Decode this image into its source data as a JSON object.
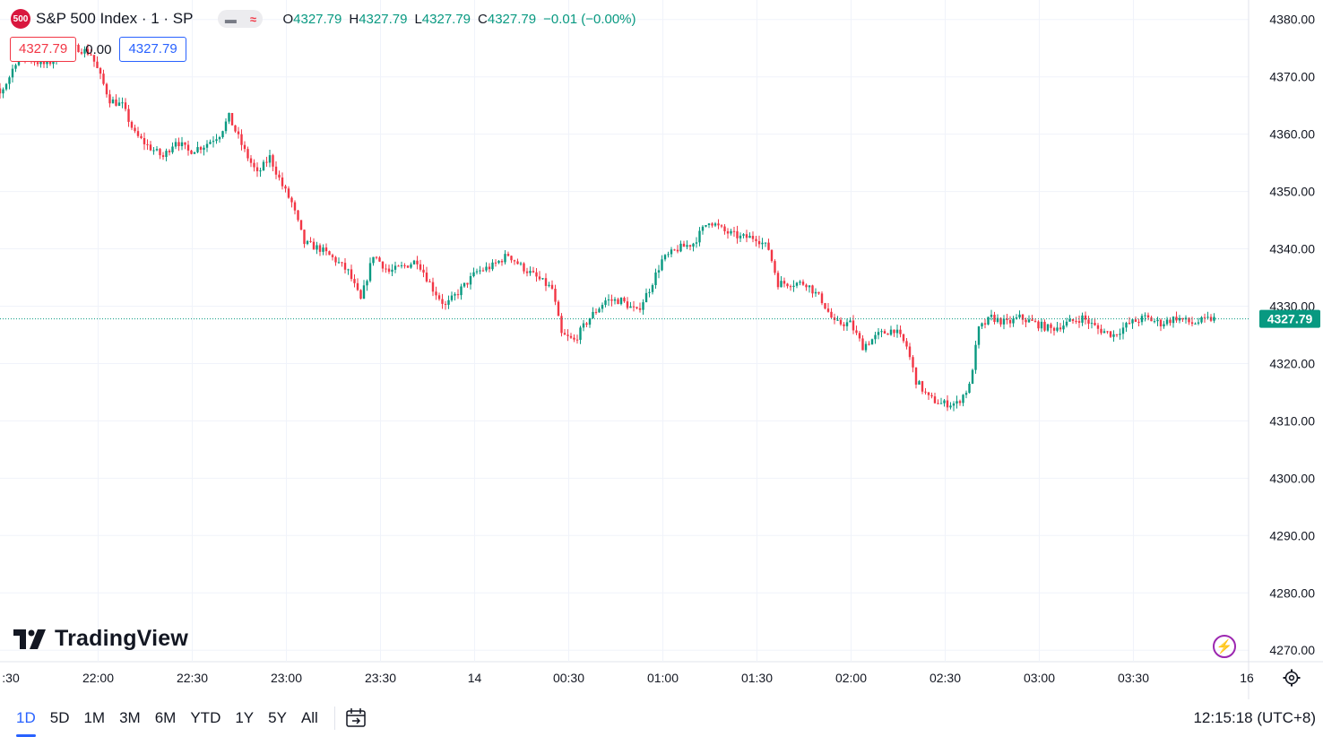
{
  "legend": {
    "badge": "500",
    "title": "S&P 500 Index · 1 · SP",
    "o_label": "O",
    "o_value": "4327.79",
    "h_label": "H",
    "h_value": "4327.79",
    "l_label": "L",
    "l_value": "4327.79",
    "c_label": "C",
    "c_value": "4327.79",
    "change": "−0.01 (−0.00%)"
  },
  "price_boxes": {
    "bid": "4327.79",
    "spread": "0.00",
    "ask": "4327.79"
  },
  "brand": "TradingView",
  "colors": {
    "up": "#089981",
    "down": "#f23645",
    "grid": "#f0f3fa",
    "axis_text": "#131722",
    "accent": "#2962ff"
  },
  "toolbar": {
    "ranges": [
      "1D",
      "5D",
      "1M",
      "3M",
      "6M",
      "YTD",
      "1Y",
      "5Y",
      "All"
    ],
    "active_range": "1D",
    "calendar_icon": "calendar-goto-icon",
    "clock": "12:15:18 (UTC+8)"
  },
  "chart_data": {
    "type": "candlestick",
    "title": "S&P 500 Index · 1 · SP",
    "interval": "1 minute",
    "y_axis": {
      "ticks": [
        4380,
        4370,
        4360,
        4350,
        4340,
        4330,
        4320,
        4310,
        4300,
        4290,
        4280,
        4270
      ],
      "tick_labels": [
        "4380.00",
        "4370.00",
        "4360.00",
        "4350.00",
        "4340.00",
        "4330.00",
        "4320.00",
        "4310.00",
        "4300.00",
        "4290.00",
        "4280.00",
        "4270.00"
      ],
      "range": [
        4268,
        4383
      ]
    },
    "x_axis": {
      "tick_labels": [
        ":30",
        "22:00",
        "22:30",
        "23:00",
        "23:30",
        "14",
        "00:30",
        "01:00",
        "01:30",
        "02:00",
        "02:30",
        "03:00",
        "03:30",
        "16"
      ],
      "range_minutes": [
        -10,
        390
      ]
    },
    "last_price": 4327.79,
    "last_price_label": "4327.79",
    "grid": true,
    "path_points": [
      {
        "t": -10,
        "p": 4370
      },
      {
        "t": -5,
        "p": 4369
      },
      {
        "t": 0,
        "p": 4367
      },
      {
        "t": 3,
        "p": 4370
      },
      {
        "t": 6,
        "p": 4374
      },
      {
        "t": 10,
        "p": 4373
      },
      {
        "t": 15,
        "p": 4372
      },
      {
        "t": 20,
        "p": 4375
      },
      {
        "t": 25,
        "p": 4375
      },
      {
        "t": 29,
        "p": 4374
      },
      {
        "t": 32,
        "p": 4370
      },
      {
        "t": 35,
        "p": 4366
      },
      {
        "t": 39,
        "p": 4365
      },
      {
        "t": 43,
        "p": 4360
      },
      {
        "t": 47,
        "p": 4358
      },
      {
        "t": 52,
        "p": 4356
      },
      {
        "t": 56,
        "p": 4359
      },
      {
        "t": 60,
        "p": 4357
      },
      {
        "t": 65,
        "p": 4358
      },
      {
        "t": 70,
        "p": 4360
      },
      {
        "t": 73,
        "p": 4363
      },
      {
        "t": 78,
        "p": 4357
      },
      {
        "t": 82,
        "p": 4353
      },
      {
        "t": 86,
        "p": 4356
      },
      {
        "t": 90,
        "p": 4351
      },
      {
        "t": 93,
        "p": 4348
      },
      {
        "t": 97,
        "p": 4341
      },
      {
        "t": 102,
        "p": 4340
      },
      {
        "t": 107,
        "p": 4338
      },
      {
        "t": 111,
        "p": 4336
      },
      {
        "t": 115,
        "p": 4331
      },
      {
        "t": 119,
        "p": 4339
      },
      {
        "t": 124,
        "p": 4336
      },
      {
        "t": 129,
        "p": 4337
      },
      {
        "t": 133,
        "p": 4338
      },
      {
        "t": 138,
        "p": 4333
      },
      {
        "t": 142,
        "p": 4330
      },
      {
        "t": 147,
        "p": 4333
      },
      {
        "t": 152,
        "p": 4336
      },
      {
        "t": 157,
        "p": 4337
      },
      {
        "t": 162,
        "p": 4339
      },
      {
        "t": 166,
        "p": 4337
      },
      {
        "t": 171,
        "p": 4335
      },
      {
        "t": 176,
        "p": 4333
      },
      {
        "t": 179,
        "p": 4325
      },
      {
        "t": 183,
        "p": 4324
      },
      {
        "t": 188,
        "p": 4328
      },
      {
        "t": 193,
        "p": 4331
      },
      {
        "t": 198,
        "p": 4331
      },
      {
        "t": 203,
        "p": 4329
      },
      {
        "t": 207,
        "p": 4333
      },
      {
        "t": 211,
        "p": 4338
      },
      {
        "t": 216,
        "p": 4340
      },
      {
        "t": 221,
        "p": 4341
      },
      {
        "t": 226,
        "p": 4345
      },
      {
        "t": 231,
        "p": 4343
      },
      {
        "t": 236,
        "p": 4342
      },
      {
        "t": 241,
        "p": 4342
      },
      {
        "t": 245,
        "p": 4340
      },
      {
        "t": 248,
        "p": 4334
      },
      {
        "t": 252,
        "p": 4334
      },
      {
        "t": 257,
        "p": 4334
      },
      {
        "t": 262,
        "p": 4331
      },
      {
        "t": 266,
        "p": 4327
      },
      {
        "t": 271,
        "p": 4327
      },
      {
        "t": 275,
        "p": 4323
      },
      {
        "t": 280,
        "p": 4325
      },
      {
        "t": 285,
        "p": 4326
      },
      {
        "t": 289,
        "p": 4323
      },
      {
        "t": 292,
        "p": 4317
      },
      {
        "t": 296,
        "p": 4314
      },
      {
        "t": 300,
        "p": 4313
      },
      {
        "t": 305,
        "p": 4313
      },
      {
        "t": 309,
        "p": 4316
      },
      {
        "t": 312,
        "p": 4326
      },
      {
        "t": 316,
        "p": 4328
      },
      {
        "t": 321,
        "p": 4327
      },
      {
        "t": 325,
        "p": 4328
      },
      {
        "t": 330,
        "p": 4327
      },
      {
        "t": 335,
        "p": 4326
      },
      {
        "t": 340,
        "p": 4327
      },
      {
        "t": 345,
        "p": 4328
      },
      {
        "t": 350,
        "p": 4326
      },
      {
        "t": 355,
        "p": 4325
      },
      {
        "t": 360,
        "p": 4327
      },
      {
        "t": 365,
        "p": 4328
      },
      {
        "t": 370,
        "p": 4327
      },
      {
        "t": 375,
        "p": 4328
      },
      {
        "t": 380,
        "p": 4327
      },
      {
        "t": 386,
        "p": 4327.8
      }
    ]
  }
}
